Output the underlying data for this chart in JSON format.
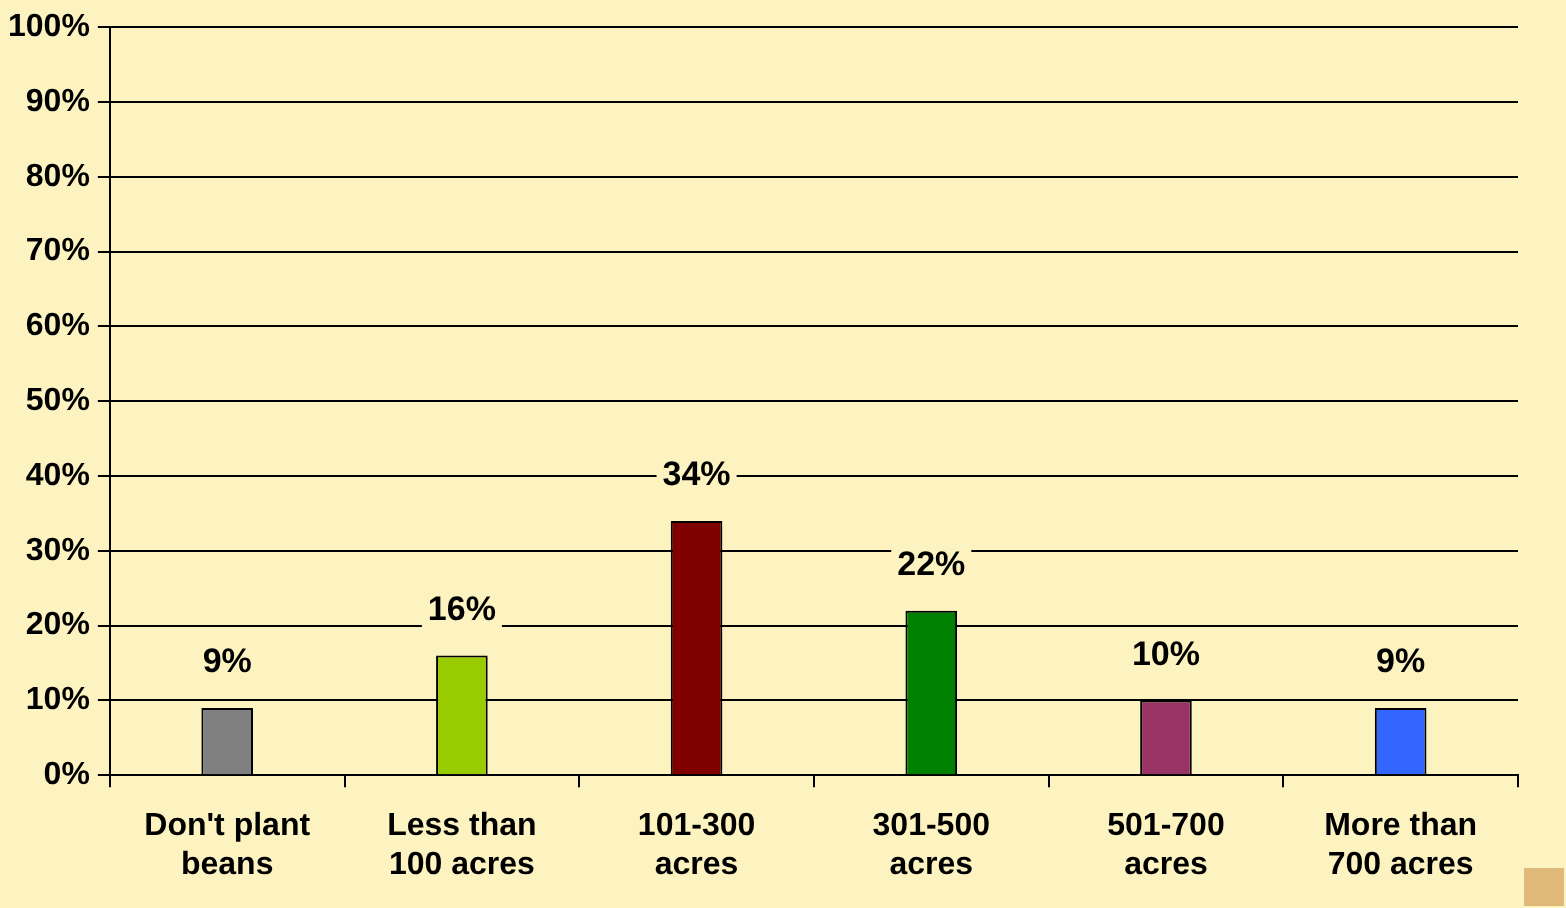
{
  "chart_data": {
    "type": "bar",
    "categories": [
      "Don't plant beans",
      "Less than 100 acres",
      "101-300 acres",
      "301-500 acres",
      "501-700 acres",
      "More than 700 acres"
    ],
    "values": [
      9,
      16,
      34,
      22,
      10,
      9
    ],
    "colors": [
      "#808080",
      "#99cc00",
      "#800000",
      "#008000",
      "#993366",
      "#3366ff"
    ],
    "value_labels": [
      "9%",
      "16%",
      "34%",
      "22%",
      "10%",
      "9%"
    ],
    "ylim": [
      0,
      100
    ],
    "yticks": [
      {
        "value": 0,
        "label": "0%"
      },
      {
        "value": 10,
        "label": "10%"
      },
      {
        "value": 20,
        "label": "20%"
      },
      {
        "value": 30,
        "label": "30%"
      },
      {
        "value": 40,
        "label": "40%"
      },
      {
        "value": 50,
        "label": "50%"
      },
      {
        "value": 60,
        "label": "60%"
      },
      {
        "value": 70,
        "label": "70%"
      },
      {
        "value": 80,
        "label": "80%"
      },
      {
        "value": 90,
        "label": "90%"
      },
      {
        "value": 100,
        "label": "100%"
      }
    ],
    "grid": "y"
  }
}
